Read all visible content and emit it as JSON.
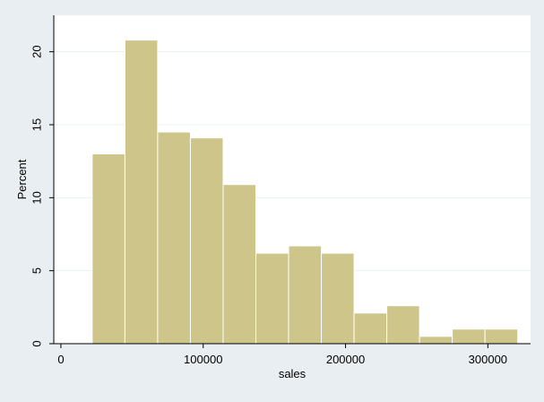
{
  "chart_data": {
    "type": "bar",
    "title": "",
    "xlabel": "sales",
    "ylabel": "Percent",
    "xlim": [
      -5000,
      330000
    ],
    "ylim": [
      0,
      22.5
    ],
    "x_ticks": [
      0,
      100000,
      200000,
      300000
    ],
    "y_ticks": [
      0,
      5,
      10,
      15,
      20
    ],
    "grid": "horizontal",
    "legend": "none",
    "bar_color": "#cdc58a",
    "bar_edge_color": "#ffffff",
    "plot_background": "#ffffff",
    "page_background": "#e8eef2",
    "bins": [
      {
        "x0": 22000,
        "x1": 45000,
        "value": 13.0
      },
      {
        "x0": 45000,
        "x1": 68000,
        "value": 20.8
      },
      {
        "x0": 68000,
        "x1": 91000,
        "value": 14.5
      },
      {
        "x0": 91000,
        "x1": 114000,
        "value": 14.1
      },
      {
        "x0": 114000,
        "x1": 137000,
        "value": 10.9
      },
      {
        "x0": 137000,
        "x1": 160000,
        "value": 6.2
      },
      {
        "x0": 160000,
        "x1": 183000,
        "value": 6.7
      },
      {
        "x0": 183000,
        "x1": 206000,
        "value": 6.2
      },
      {
        "x0": 206000,
        "x1": 229000,
        "value": 2.1
      },
      {
        "x0": 229000,
        "x1": 252000,
        "value": 2.6
      },
      {
        "x0": 252000,
        "x1": 275000,
        "value": 0.5
      },
      {
        "x0": 275000,
        "x1": 298000,
        "value": 1.0
      },
      {
        "x0": 298000,
        "x1": 321000,
        "value": 1.0
      }
    ]
  }
}
